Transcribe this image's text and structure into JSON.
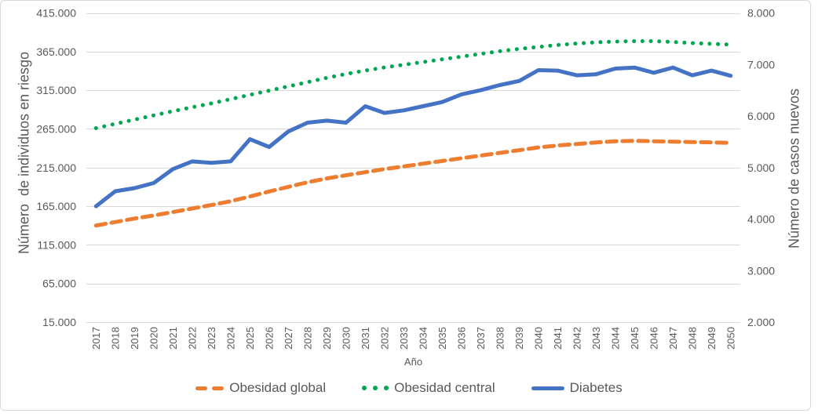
{
  "colors": {
    "text": "#595959",
    "grid": "#D9D9D9",
    "frame_border": "#D9D9D9",
    "background": "#FFFFFF",
    "orange": "#ED7D31",
    "green": "#00A651",
    "blue": "#4472C4"
  },
  "chart_data": {
    "type": "line",
    "title": "",
    "x_label": "Año",
    "categories": [
      "2017",
      "2018",
      "2019",
      "2020",
      "2021",
      "2022",
      "2023",
      "2024",
      "2025",
      "2026",
      "2027",
      "2028",
      "2029",
      "2030",
      "2031",
      "2032",
      "2033",
      "2034",
      "2035",
      "2036",
      "2037",
      "2038",
      "2039",
      "2040",
      "2041",
      "2042",
      "2043",
      "2044",
      "2045",
      "2046",
      "2047",
      "2048",
      "2049",
      "2050"
    ],
    "grid": true,
    "legend_position": "bottom",
    "left_axis": {
      "title": "Número  de individuos en riesgo",
      "min": 15000,
      "max": 415000,
      "step": 50000,
      "tick_values": [
        15000,
        65000,
        115000,
        165000,
        215000,
        265000,
        315000,
        365000,
        415000
      ],
      "tick_labels": [
        "15.000",
        "65.000",
        "115.000",
        "165.000",
        "215.000",
        "265.000",
        "315.000",
        "365.000",
        "415.000"
      ]
    },
    "right_axis": {
      "title": "Número de casos nuevos",
      "min": 2000,
      "max": 8000,
      "step": 1000,
      "tick_values": [
        2000,
        3000,
        4000,
        5000,
        6000,
        7000,
        8000
      ],
      "tick_labels": [
        "2.000",
        "3.000",
        "4.000",
        "5.000",
        "6.000",
        "7.000",
        "8.000"
      ]
    },
    "series": [
      {
        "name": "Obesidad global",
        "axis": "left",
        "color": "#ED7D31",
        "line_style": "dashed",
        "values": [
          140000,
          144500,
          149000,
          153000,
          157500,
          162000,
          166500,
          171500,
          177500,
          184000,
          190000,
          196000,
          201000,
          205000,
          209000,
          213000,
          216500,
          220000,
          223500,
          227000,
          230500,
          234000,
          237500,
          241000,
          243500,
          245500,
          247500,
          249000,
          249500,
          249000,
          248500,
          248000,
          247500,
          247000
        ]
      },
      {
        "name": "Obesidad central",
        "axis": "left",
        "color": "#00A651",
        "line_style": "dotted",
        "values": [
          266000,
          271500,
          277000,
          282500,
          288000,
          293000,
          298000,
          303500,
          309000,
          314500,
          320000,
          325500,
          331000,
          336000,
          340500,
          344500,
          348000,
          351500,
          355000,
          358500,
          362000,
          365500,
          368500,
          371000,
          373500,
          375500,
          377000,
          378000,
          378500,
          378500,
          377500,
          376000,
          375000,
          374000
        ]
      },
      {
        "name": "Diabetes",
        "axis": "right",
        "color": "#4472C4",
        "line_style": "solid",
        "values": [
          4250,
          4540,
          4600,
          4700,
          4970,
          5120,
          5090,
          5120,
          5550,
          5400,
          5700,
          5870,
          5910,
          5870,
          6190,
          6060,
          6110,
          6190,
          6270,
          6420,
          6500,
          6600,
          6680,
          6890,
          6880,
          6790,
          6810,
          6920,
          6940,
          6840,
          6940,
          6790,
          6880,
          6780
        ]
      }
    ]
  }
}
